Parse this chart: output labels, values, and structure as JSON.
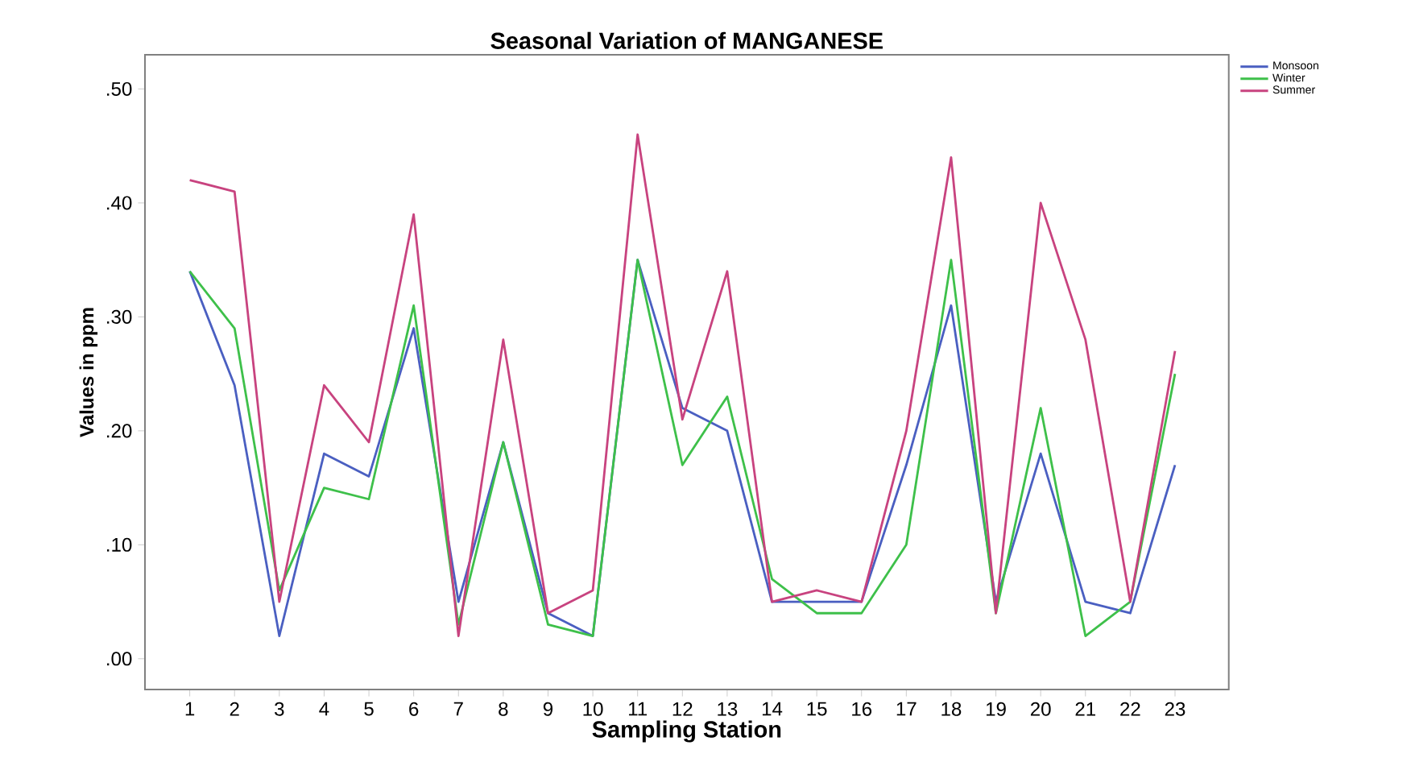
{
  "chart_data": {
    "type": "line",
    "title": "Seasonal Variation of MANGANESE",
    "xlabel": "Sampling Station",
    "ylabel": "Values in ppm",
    "categories": [
      "1",
      "2",
      "3",
      "4",
      "5",
      "6",
      "7",
      "8",
      "9",
      "10",
      "11",
      "12",
      "13",
      "14",
      "15",
      "16",
      "17",
      "18",
      "19",
      "20",
      "21",
      "22",
      "23"
    ],
    "series": [
      {
        "name": "Monsoon",
        "color": "#4a5fc1",
        "values": [
          0.34,
          0.24,
          0.02,
          0.18,
          0.16,
          0.29,
          0.05,
          0.19,
          0.04,
          0.02,
          0.35,
          0.22,
          0.2,
          0.05,
          0.05,
          0.05,
          0.17,
          0.31,
          0.05,
          0.18,
          0.05,
          0.04,
          0.17
        ]
      },
      {
        "name": "Winter",
        "color": "#3ec04a",
        "values": [
          0.34,
          0.29,
          0.06,
          0.15,
          0.14,
          0.31,
          0.03,
          0.19,
          0.03,
          0.02,
          0.35,
          0.17,
          0.23,
          0.07,
          0.04,
          0.04,
          0.1,
          0.35,
          0.04,
          0.22,
          0.02,
          0.05,
          0.25
        ]
      },
      {
        "name": "Summer",
        "color": "#c8437f",
        "values": [
          0.42,
          0.41,
          0.05,
          0.24,
          0.19,
          0.39,
          0.02,
          0.28,
          0.04,
          0.06,
          0.46,
          0.21,
          0.34,
          0.05,
          0.06,
          0.05,
          0.2,
          0.44,
          0.04,
          0.4,
          0.28,
          0.05,
          0.27
        ]
      }
    ],
    "ylim": [
      -0.027,
      0.53
    ],
    "yticks": [
      {
        "value": 0,
        "label": ".00"
      },
      {
        "value": 0.1,
        "label": ".10"
      },
      {
        "value": 0.2,
        "label": ".20"
      },
      {
        "value": 0.3,
        "label": ".30"
      },
      {
        "value": 0.4,
        "label": ".40"
      },
      {
        "value": 0.5,
        "label": ".50"
      }
    ],
    "legend": "top right",
    "grid": false,
    "marker": "none",
    "line_style": "solid"
  }
}
